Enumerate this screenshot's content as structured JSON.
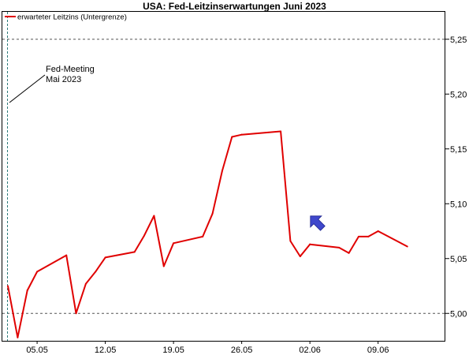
{
  "chart_data": {
    "type": "line",
    "title": "USA: Fed-Leitzinserwartungen Juni 2023",
    "xlabel": "",
    "ylabel": "",
    "ylim": [
      4.975,
      5.275
    ],
    "x_tick_labels": [
      "05.05",
      "12.05",
      "19.05",
      "26.05",
      "02.06",
      "09.06"
    ],
    "y_ticks": [
      5.0,
      5.05,
      5.1,
      5.15,
      5.2,
      5.25
    ],
    "y_tick_labels": [
      "5,00",
      "5,05",
      "5,10",
      "5,15",
      "5,20",
      "5,25"
    ],
    "reference_lines": [
      5.0,
      5.25
    ],
    "grid": false,
    "legend_position": "top-left",
    "annotation": {
      "line1": "Fed-Meeting",
      "line2": "Mai 2023"
    },
    "series": [
      {
        "name": "erwarteter Leitzins (Untergrenze)",
        "color": "#e00000",
        "x": [
          "02.05",
          "03.05",
          "04.05",
          "05.05",
          "08.05",
          "09.05",
          "10.05",
          "11.05",
          "12.05",
          "15.05",
          "16.05",
          "17.05",
          "18.05",
          "19.05",
          "22.05",
          "23.05",
          "24.05",
          "25.05",
          "26.05",
          "30.05",
          "31.05",
          "01.06",
          "02.06",
          "05.06",
          "06.06",
          "07.06",
          "08.06",
          "09.06",
          "12.06"
        ],
        "values": [
          5.025,
          4.978,
          5.021,
          5.038,
          5.053,
          5.0,
          5.027,
          5.038,
          5.051,
          5.056,
          5.071,
          5.089,
          5.043,
          5.064,
          5.07,
          5.091,
          5.13,
          5.161,
          5.163,
          5.166,
          5.066,
          5.052,
          5.063,
          5.06,
          5.055,
          5.07,
          5.07,
          5.075,
          5.061
        ]
      }
    ]
  }
}
